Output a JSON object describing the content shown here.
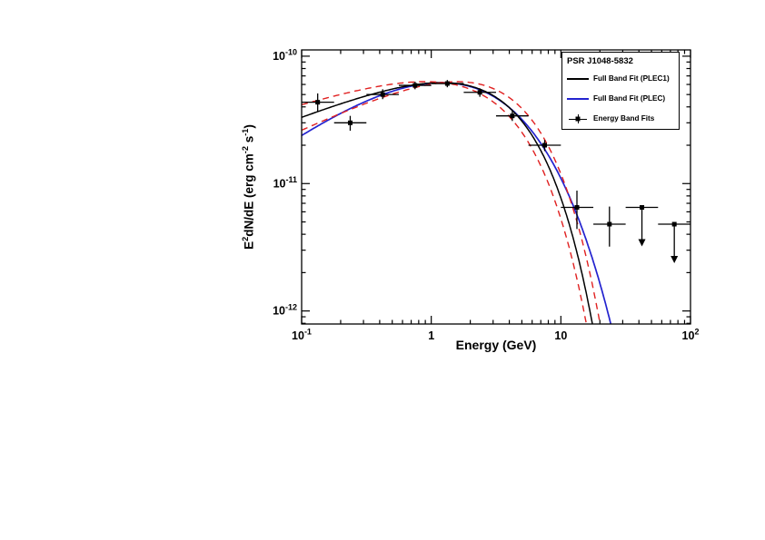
{
  "figure": {
    "background": "#ffffff",
    "legend": {
      "header": "PSR J1048-5832",
      "entries": [
        {
          "label": "Full Band Fit (PLEC1)",
          "type": "line",
          "color": "#000000"
        },
        {
          "label": "Full Band Fit (PLEC)",
          "type": "line",
          "color": "#2323cf"
        },
        {
          "label": "Energy Band Fits",
          "type": "marker",
          "color": "#000000"
        }
      ]
    }
  },
  "chart_data": {
    "type": "scatter",
    "title": "",
    "xlabel": "Energy (GeV)",
    "ylabel": "E^{2}dN/dE (erg cm^{-2} s^{-1})",
    "xscale": "log",
    "yscale": "log",
    "xlim": [
      0.1,
      100
    ],
    "ylim": [
      7.9e-13,
      1.12e-10
    ],
    "grid": false,
    "legend_position": "top-right",
    "xticks": [
      {
        "v": 0.1,
        "label": "10^{-1}"
      },
      {
        "v": 1,
        "label": "1"
      },
      {
        "v": 10,
        "label": "10"
      },
      {
        "v": 100,
        "label": "10^{2}"
      }
    ],
    "yticks": [
      {
        "v": 1e-10,
        "label": "10^{-10}"
      },
      {
        "v": 1e-11,
        "label": "10^{-11}"
      },
      {
        "v": 1e-12,
        "label": "10^{-12}"
      }
    ],
    "points_units": {
      "x": "GeV",
      "y": "erg cm^-2 s^-1"
    },
    "points": [
      {
        "e": 0.133,
        "elo": 0.1,
        "ehi": 0.178,
        "f": 4.35e-11,
        "flo": 3.7e-11,
        "fhi": 5.1e-11,
        "ul": false
      },
      {
        "e": 0.237,
        "elo": 0.178,
        "ehi": 0.316,
        "f": 3e-11,
        "flo": 2.6e-11,
        "fhi": 3.4e-11,
        "ul": false
      },
      {
        "e": 0.422,
        "elo": 0.316,
        "ehi": 0.562,
        "f": 5e-11,
        "flo": 4.6e-11,
        "fhi": 5.5e-11,
        "ul": false
      },
      {
        "e": 0.75,
        "elo": 0.562,
        "ehi": 1.0,
        "f": 5.9e-11,
        "flo": 5.5e-11,
        "fhi": 6.3e-11,
        "ul": false
      },
      {
        "e": 1.33,
        "elo": 1.0,
        "ehi": 1.78,
        "f": 6.1e-11,
        "flo": 5.7e-11,
        "fhi": 6.5e-11,
        "ul": false
      },
      {
        "e": 2.37,
        "elo": 1.78,
        "ehi": 3.16,
        "f": 5.2e-11,
        "flo": 4.8e-11,
        "fhi": 5.6e-11,
        "ul": false
      },
      {
        "e": 4.22,
        "elo": 3.16,
        "ehi": 5.62,
        "f": 3.4e-11,
        "flo": 3.1e-11,
        "fhi": 3.7e-11,
        "ul": false
      },
      {
        "e": 7.5,
        "elo": 5.62,
        "ehi": 10.0,
        "f": 2e-11,
        "flo": 1.8e-11,
        "fhi": 2.2e-11,
        "ul": false
      },
      {
        "e": 13.3,
        "elo": 10.0,
        "ehi": 17.8,
        "f": 6.5e-12,
        "flo": 4.4e-12,
        "fhi": 8.8e-12,
        "ul": false
      },
      {
        "e": 23.7,
        "elo": 17.8,
        "ehi": 31.6,
        "f": 4.8e-12,
        "flo": 3.2e-12,
        "fhi": 6.6e-12,
        "ul": false
      },
      {
        "e": 42.2,
        "elo": 31.6,
        "ehi": 56.2,
        "f": 6.5e-12,
        "ul": true
      },
      {
        "e": 75.0,
        "elo": 56.2,
        "ehi": 100.0,
        "f": 4.8e-12,
        "ul": true
      }
    ],
    "curves_model": "E2dNdE(E) = A * E^index * exp(-(E/Ec)^b)  [E in GeV, result in erg cm^-2 s^-1]",
    "curves": [
      {
        "name": "full-band-fit-plec",
        "label": "Full Band Fit (PLEC)",
        "color": "#2323cf",
        "width": 1.7,
        "dash": false,
        "A": 2.03e-10,
        "index": 0.8,
        "Ec": 0.743,
        "b": 0.6
      },
      {
        "name": "full-band-fit-plec1",
        "label": "Full Band Fit (PLEC1)",
        "color": "#000000",
        "width": 1.5,
        "dash": false,
        "A": 8.6e-11,
        "index": 0.4,
        "Ec": 3.0,
        "b": 1
      },
      {
        "name": "plec1-uncertainty-upper",
        "label": "PLEC1 fit uncertainty",
        "color": "#e02020",
        "width": 1.4,
        "dash": true,
        "A": 9e-11,
        "index": 0.32,
        "Ec": 2.8,
        "b": 1
      },
      {
        "name": "plec1-uncertainty-lower",
        "label": "PLEC1 fit uncertainty",
        "color": "#e02020",
        "width": 1.4,
        "dash": true,
        "A": 8.17e-11,
        "index": 0.48,
        "Ec": 3.3,
        "b": 1
      }
    ]
  }
}
